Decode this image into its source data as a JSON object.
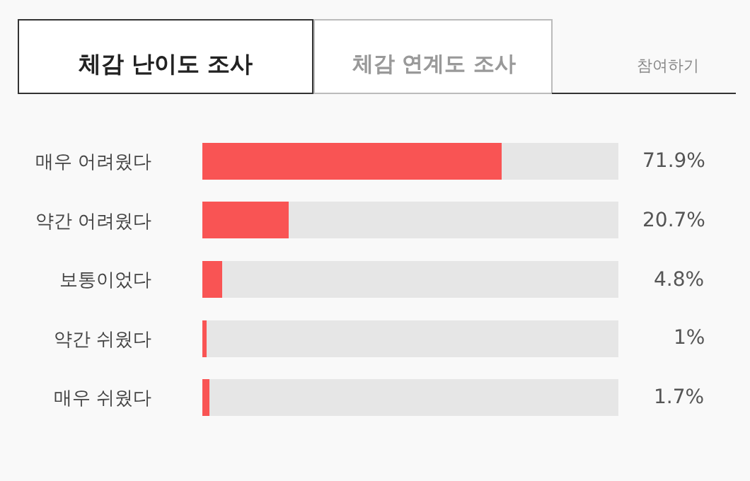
{
  "chart_data": {
    "type": "bar",
    "orientation": "horizontal",
    "stacked": true,
    "title": "체감 난이도 조사",
    "annotations": [
      "체감 연계도 조사",
      "참여하기"
    ],
    "categories": [
      "매우 어려웠다",
      "약간 어려웠다",
      "보통이었다",
      "약간 쉬웠다",
      "매우 쉬웠다"
    ],
    "series": [
      {
        "color": "#f95454",
        "values": [
          71.9,
          20.7,
          4.8,
          1,
          1.7
        ],
        "value_labels": [
          "71.9%",
          "20.7%",
          "4.8%",
          "1%",
          "1.7%"
        ]
      },
      {
        "color": "#e6e6e6",
        "values": [
          28.1,
          79.3,
          95.2,
          99,
          98.3
        ]
      }
    ],
    "xlim": [
      0,
      100
    ],
    "tick_labels": "y",
    "grid": false,
    "legend": false
  }
}
